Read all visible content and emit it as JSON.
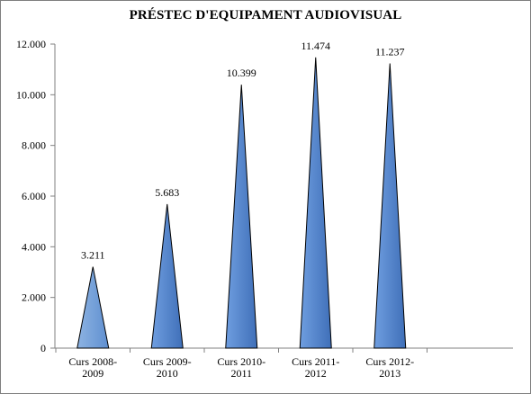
{
  "chart_data": {
    "type": "bar",
    "title": "PRÉSTEC D'EQUIPAMENT AUDIOVISUAL",
    "categories": [
      [
        "Curs 2008-",
        "2009"
      ],
      [
        "Curs 2009-",
        "2010"
      ],
      [
        "Curs 2010-",
        "2011"
      ],
      [
        "Curs 2011-",
        "2012"
      ],
      [
        "Curs 2012-",
        "2013"
      ]
    ],
    "values": [
      3211,
      5683,
      10399,
      11474,
      11237
    ],
    "data_labels": [
      "3.211",
      "5.683",
      "10.399",
      "11.474",
      "11.237"
    ],
    "ylim": [
      0,
      12000
    ],
    "yticks": [
      0,
      2000,
      4000,
      6000,
      8000,
      10000,
      12000
    ],
    "ytick_labels": [
      "0",
      "2.000",
      "4.000",
      "6.000",
      "8.000",
      "10.000",
      "12.000"
    ],
    "xlabel": "",
    "ylabel": "",
    "grid": false,
    "legend": "none",
    "mark_shape": "triangle",
    "colors": {
      "first_bar_light": "#8db3e2",
      "first_bar_dark": "#5f8fd0",
      "bar_light": "#6f9ee0",
      "bar_dark": "#3f6fb8",
      "outline": "#000000",
      "axis": "#808080"
    }
  }
}
